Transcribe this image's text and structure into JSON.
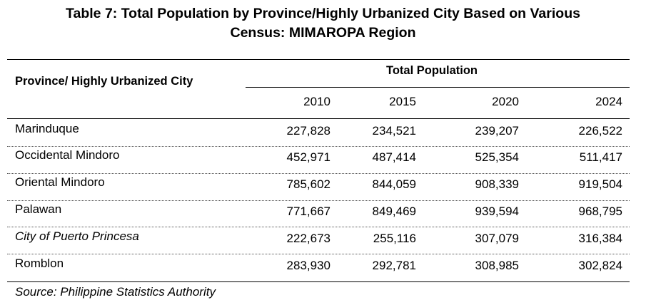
{
  "title": {
    "line1": "Table 7: Total Population by Province/Highly Urbanized City Based on Various",
    "line2": "Census: MIMAROPA Region"
  },
  "table": {
    "row_header": "Province/ Highly Urbanized City",
    "group_header": "Total Population",
    "years": [
      "2010",
      "2015",
      "2020",
      "2024"
    ],
    "rows": [
      {
        "name": "Marinduque",
        "values": [
          "227,828",
          "234,521",
          "239,207",
          "226,522"
        ]
      },
      {
        "name": "Occidental Mindoro",
        "values": [
          "452,971",
          "487,414",
          "525,354",
          "511,417"
        ]
      },
      {
        "name": "Oriental Mindoro",
        "values": [
          "785,602",
          "844,059",
          "908,339",
          "919,504"
        ]
      },
      {
        "name": "Palawan",
        "values": [
          "771,667",
          "849,469",
          "939,594",
          "968,795"
        ]
      },
      {
        "name": "City of Puerto Princesa",
        "values": [
          "222,673",
          "255,116",
          "307,079",
          "316,384"
        ]
      },
      {
        "name": "Romblon",
        "values": [
          "283,930",
          "292,781",
          "308,985",
          "302,824"
        ]
      }
    ]
  },
  "source": "Source: Philippine Statistics Authority"
}
